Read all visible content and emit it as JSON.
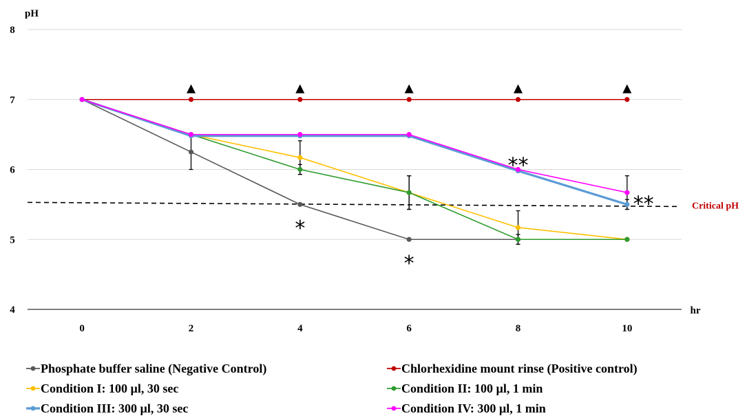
{
  "chart_data": {
    "type": "line",
    "ylabel": "pH",
    "xlabel": "hr",
    "x": [
      0,
      2,
      4,
      6,
      8,
      10
    ],
    "x_tick_labels": [
      "0",
      "2",
      "4",
      "6",
      "8",
      "10"
    ],
    "y_tick_labels": [
      "4",
      "5",
      "6",
      "7",
      "8"
    ],
    "ylim": [
      4,
      8
    ],
    "grid": true,
    "legend_placement": "bottom",
    "critical_line": {
      "value": 5.5,
      "label": "Critical pH",
      "color": "#c00000"
    },
    "series": [
      {
        "name": "Phosphate buffer saline (Negative Control)",
        "color": "#595959",
        "values": [
          7,
          6.25,
          5.5,
          5.0,
          5.0,
          5.0
        ],
        "errors": [
          0,
          0.25,
          0,
          0,
          0,
          0
        ]
      },
      {
        "name": "Chlorhexidine mount rinse (Positive control)",
        "color": "#c00000",
        "values": [
          7,
          7,
          7,
          7,
          7,
          7
        ],
        "errors": [
          0,
          0,
          0,
          0,
          0,
          0
        ]
      },
      {
        "name": "Condition I: 100 µl, 30 sec",
        "color": "#ffc000",
        "values": [
          7,
          6.5,
          6.17,
          5.67,
          5.17,
          5.0
        ],
        "errors": [
          0,
          0,
          0.24,
          0.24,
          0.24,
          0
        ]
      },
      {
        "name": "Condition II: 100 µl, 1 min",
        "color": "#2e9b2e",
        "values": [
          7,
          6.5,
          6.0,
          5.67,
          5.0,
          5.0
        ],
        "errors": [
          0,
          0,
          0.07,
          0.24,
          0.07,
          0
        ]
      },
      {
        "name": "Condition III: 300 µl, 30 sec",
        "color": "#5b9bd5",
        "values": [
          7,
          6.48,
          6.48,
          6.48,
          5.98,
          5.5
        ],
        "errors": [
          0,
          0,
          0,
          0,
          0,
          0.07
        ]
      },
      {
        "name": "Condition IV: 300 µl, 1 min",
        "color": "#ff00ff",
        "values": [
          7,
          6.5,
          6.5,
          6.5,
          6.0,
          5.67
        ],
        "errors": [
          0,
          0,
          0,
          0,
          0,
          0.24
        ]
      }
    ],
    "annotations": [
      {
        "text": "▲",
        "x": 2,
        "y": 7.17
      },
      {
        "text": "▲",
        "x": 4,
        "y": 7.17
      },
      {
        "text": "▲",
        "x": 6,
        "y": 7.17
      },
      {
        "text": "▲",
        "x": 8,
        "y": 7.17
      },
      {
        "text": "▲",
        "x": 10,
        "y": 7.17
      },
      {
        "text": "*",
        "x": 4,
        "y": 5.2
      },
      {
        "text": "*",
        "x": 6,
        "y": 4.7
      },
      {
        "text": "**",
        "x": 8,
        "y": 6.1
      },
      {
        "text": "**",
        "x": 10.3,
        "y": 5.55
      }
    ]
  }
}
